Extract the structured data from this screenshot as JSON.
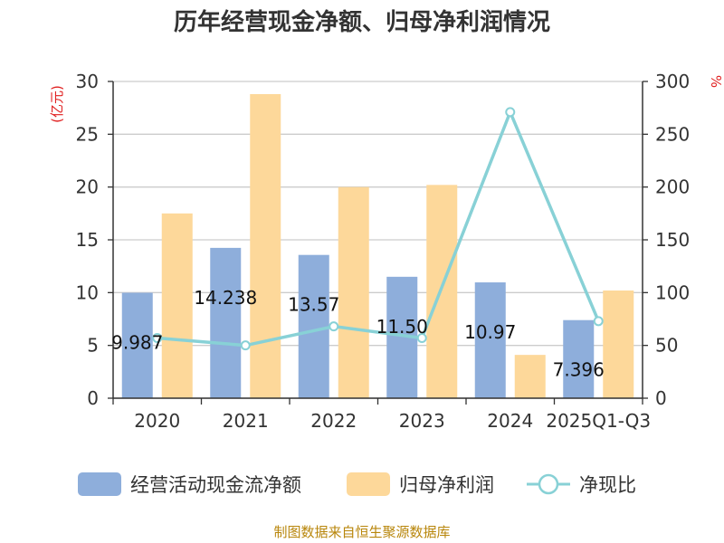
{
  "chart_data": {
    "type": "bar",
    "title": "历年经营现金净额、归母净利润情况",
    "categories": [
      "2020",
      "2021",
      "2022",
      "2023",
      "2024",
      "2025Q1-Q3"
    ],
    "series": [
      {
        "name": "经营活动现金流净额",
        "kind": "bar",
        "axis": "left",
        "color": "#8eaedb",
        "values": [
          9.987,
          14.238,
          13.57,
          11.5,
          10.97,
          7.396
        ],
        "labels": [
          "9.987",
          "14.238",
          "13.57",
          "11.50",
          "10.97",
          "7.396"
        ]
      },
      {
        "name": "归母净利润",
        "kind": "bar",
        "axis": "left",
        "color": "#fdd89a",
        "values": [
          17.5,
          28.8,
          20.0,
          20.2,
          4.1,
          10.2
        ]
      },
      {
        "name": "净现比",
        "kind": "line",
        "axis": "right",
        "color": "#88d1d6",
        "values": [
          57,
          50,
          68,
          57,
          271,
          73
        ]
      }
    ],
    "ylabel_left": "(亿元)",
    "ylabel_right": "%",
    "ylim_left": [
      0,
      30
    ],
    "ylim_right": [
      0,
      300
    ],
    "yticks_left": [
      "0",
      "5",
      "10",
      "15",
      "20",
      "25",
      "30"
    ],
    "yticks_right": [
      "0",
      "50",
      "100",
      "150",
      "200",
      "250",
      "300"
    ],
    "grid": true,
    "legend_position": "bottom"
  },
  "source_text": "制图数据来自恒生聚源数据库"
}
